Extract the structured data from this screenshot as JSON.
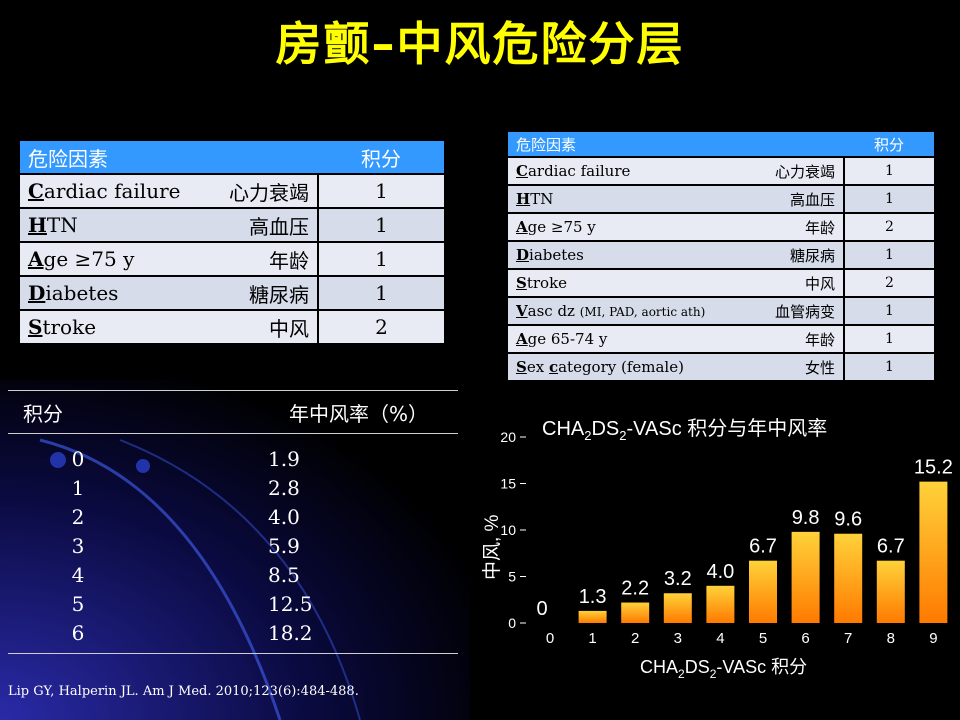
{
  "title": "房颤–中风危险分层",
  "chads2_table": {
    "header_factor": "危险因素",
    "header_score": "积分",
    "rows": [
      {
        "initial": "C",
        "rest": "ardiac failure",
        "cn": "心力衰竭",
        "score": "1"
      },
      {
        "initial": "H",
        "rest": "TN",
        "cn": "高血压",
        "score": "1"
      },
      {
        "initial": "A",
        "rest": "ge ≥75 y",
        "cn": "年龄",
        "score": "1"
      },
      {
        "initial": "D",
        "rest": "iabetes",
        "cn": "糖尿病",
        "score": "1"
      },
      {
        "initial": "S",
        "rest": "troke",
        "cn": "中风",
        "score": "2"
      }
    ]
  },
  "chads2vasc_table": {
    "header_factor": "危险因素",
    "header_score": "积分",
    "rows": [
      {
        "initial": "C",
        "rest": "ardiac failure",
        "note": "",
        "cn": "心力衰竭",
        "score": "1"
      },
      {
        "initial": "H",
        "rest": "TN",
        "note": "",
        "cn": "高血压",
        "score": "1"
      },
      {
        "initial": "A",
        "rest": "ge ≥75 y",
        "note": "",
        "cn": "年龄",
        "score": "2"
      },
      {
        "initial": "D",
        "rest": "iabetes",
        "note": "",
        "cn": "糖尿病",
        "score": "1"
      },
      {
        "initial": "S",
        "rest": "troke",
        "note": "",
        "cn": "中风",
        "score": "2"
      },
      {
        "initial": "V",
        "rest": "asc dz",
        "note": "(MI, PAD, aortic ath)",
        "cn": "血管病变",
        "score": "1"
      },
      {
        "initial": "A",
        "rest": "ge 65-74 y",
        "note": "",
        "cn": "年龄",
        "score": "1"
      },
      {
        "initial": "S",
        "rest": "ex ",
        "initial2": "c",
        "rest2": "ategory (female)",
        "cn": "女性",
        "score": "1"
      }
    ]
  },
  "rate_table": {
    "header_score": "积分",
    "header_rate": "年中风率（%）",
    "rows": [
      {
        "score": "0",
        "rate": "1.9"
      },
      {
        "score": "1",
        "rate": "2.8"
      },
      {
        "score": "2",
        "rate": "4.0"
      },
      {
        "score": "3",
        "rate": "5.9"
      },
      {
        "score": "4",
        "rate": "8.5"
      },
      {
        "score": "5",
        "rate": "12.5"
      },
      {
        "score": "6",
        "rate": "18.2"
      }
    ]
  },
  "chart_data": {
    "type": "bar",
    "title_parts": [
      "CHA",
      "2",
      "DS",
      "2",
      "-VASc 积分与年中风率"
    ],
    "xlabel_parts": [
      "CHA",
      "2",
      "DS",
      "2",
      "-VASc 积分"
    ],
    "ylabel": "中风, %",
    "categories": [
      "0",
      "1",
      "2",
      "3",
      "4",
      "5",
      "6",
      "7",
      "8",
      "9"
    ],
    "values": [
      0,
      1.3,
      2.2,
      3.2,
      4.0,
      6.7,
      9.8,
      9.6,
      6.7,
      15.2
    ],
    "value_labels": [
      "0",
      "1.3",
      "2.2",
      "3.2",
      "4.0",
      "6.7",
      "9.8",
      "9.6",
      "6.7",
      "15.2"
    ],
    "yticks": [
      "0",
      "5",
      "10",
      "15",
      "20"
    ],
    "ylim": [
      0,
      20
    ],
    "colors": {
      "bar_top": "#ffd23a",
      "bar_bottom": "#ff7a00"
    }
  },
  "citation": "Lip GY, Halperin JL. Am J Med. 2010;123(6):484-488."
}
